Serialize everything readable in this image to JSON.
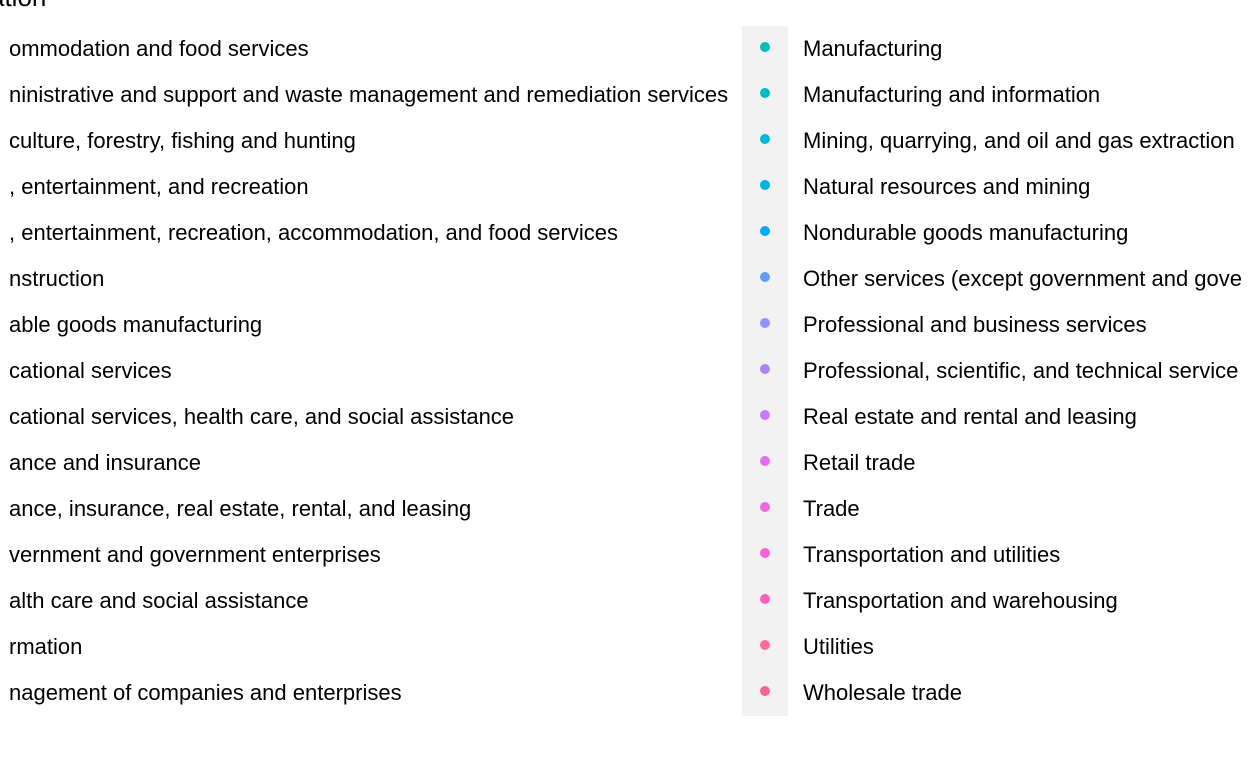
{
  "chart_data": {
    "type": "scatter",
    "legend": {
      "title": "ation",
      "placement": "right",
      "columns": [
        {
          "items": [
            {
              "label": "ommodation and food services",
              "color": "#f8766d"
            },
            {
              "label": "ninistrative and support and waste management and remediation services",
              "color": "#f37b59"
            },
            {
              "label": "culture, forestry, fishing and hunting",
              "color": "#ed8141"
            },
            {
              "label": ", entertainment, and recreation",
              "color": "#e7861b"
            },
            {
              "label": ", entertainment, recreation, accommodation, and food services",
              "color": "#df8b00"
            },
            {
              "label": "nstruction",
              "color": "#d59100"
            },
            {
              "label": "able goods manufacturing",
              "color": "#cb9600"
            },
            {
              "label": "cational services",
              "color": "#c09b00"
            },
            {
              "label": "cational services, health care, and social assistance",
              "color": "#b3a000"
            },
            {
              "label": "ance and insurance",
              "color": "#a5a400"
            },
            {
              "label": "ance, insurance, real estate, rental, and leasing",
              "color": "#95a900"
            },
            {
              "label": "vernment and government enterprises",
              "color": "#83ad00"
            },
            {
              "label": "alth care and social assistance",
              "color": "#6bb100"
            },
            {
              "label": "rmation",
              "color": "#4bb400"
            },
            {
              "label": "nagement of companies and enterprises",
              "color": "#00b81f"
            }
          ]
        },
        {
          "items": [
            {
              "label": "Manufacturing",
              "color": "#00bfb3"
            },
            {
              "label": "Manufacturing and information",
              "color": "#00bcc8"
            },
            {
              "label": "Mining, quarrying, and oil and gas extraction",
              "color": "#00b8d9"
            },
            {
              "label": "Natural resources and mining",
              "color": "#00b2e8"
            },
            {
              "label": "Nondurable goods manufacturing",
              "color": "#00abf5"
            },
            {
              "label": "Other services (except government and gove",
              "color": "#619cff"
            },
            {
              "label": "Professional and business services",
              "color": "#8f91ff"
            },
            {
              "label": "Professional, scientific, and technical service",
              "color": "#b083f0"
            },
            {
              "label": "Real estate and rental and leasing",
              "color": "#c77cff"
            },
            {
              "label": "Retail trade",
              "color": "#e76bf3"
            },
            {
              "label": "Trade",
              "color": "#f066e0"
            },
            {
              "label": "Transportation and utilities",
              "color": "#fa62db"
            },
            {
              "label": "Transportation and warehousing",
              "color": "#ff62bc"
            },
            {
              "label": "Utilities",
              "color": "#fd6c9a"
            },
            {
              "label": "Wholesale trade",
              "color": "#f8668d"
            }
          ]
        }
      ]
    }
  }
}
